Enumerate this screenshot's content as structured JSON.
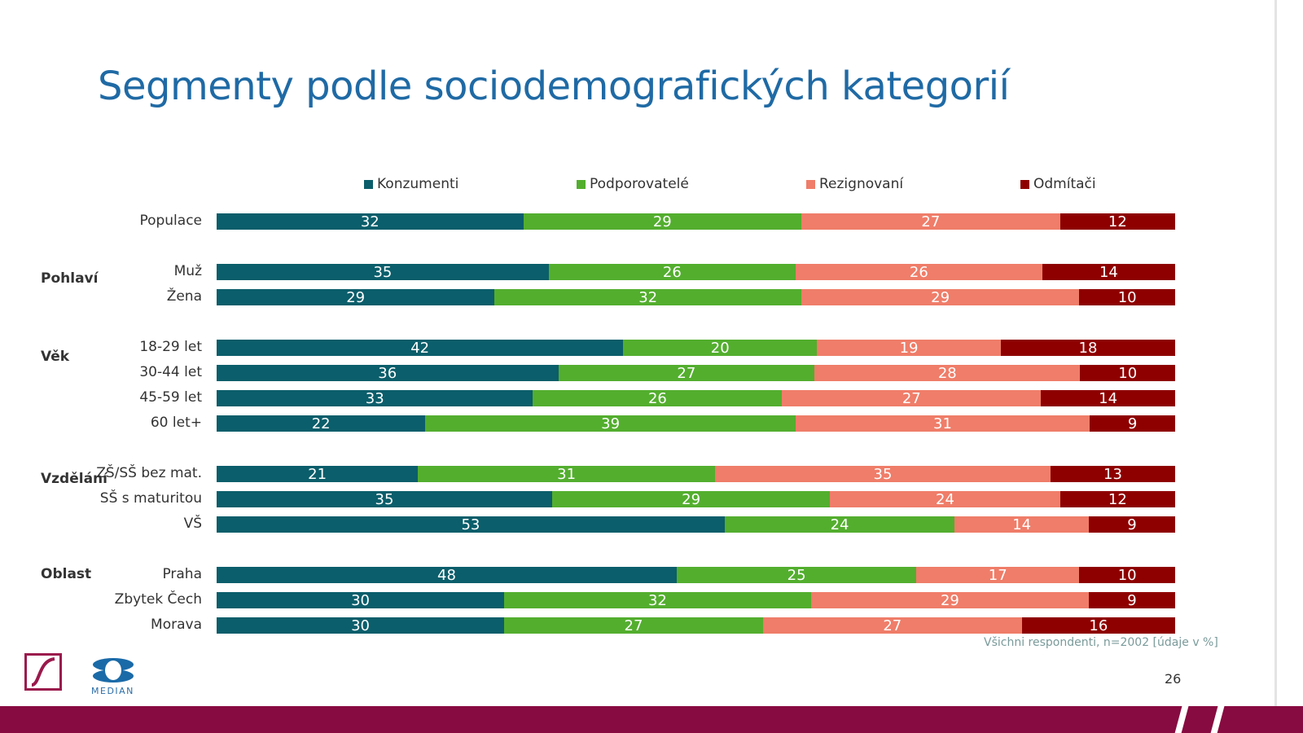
{
  "title": "Segmenty podle sociodemografických kategorií",
  "chart_data": {
    "type": "bar",
    "orientation": "horizontal",
    "stacked": "100%",
    "legend_position": "top",
    "series": [
      {
        "name": "Konzumenti",
        "color": "#0b5e6b"
      },
      {
        "name": "Podporovatelé",
        "color": "#53ae2e"
      },
      {
        "name": "Rezignovaní",
        "color": "#ef7d69"
      },
      {
        "name": "Odmítači",
        "color": "#8e0000"
      }
    ],
    "rows": [
      {
        "group": "",
        "label": "Populace",
        "values": [
          32,
          29,
          27,
          12
        ]
      },
      {
        "group": "Pohlaví",
        "label": "Muž",
        "values": [
          35,
          26,
          26,
          14
        ]
      },
      {
        "group": "",
        "label": "Žena",
        "values": [
          29,
          32,
          29,
          10
        ]
      },
      {
        "group": "Věk",
        "label": "18-29 let",
        "values": [
          42,
          20,
          19,
          18
        ]
      },
      {
        "group": "",
        "label": "30-44 let",
        "values": [
          36,
          27,
          28,
          10
        ]
      },
      {
        "group": "",
        "label": "45-59 let",
        "values": [
          33,
          26,
          27,
          14
        ]
      },
      {
        "group": "",
        "label": "60 let+",
        "values": [
          22,
          39,
          31,
          9
        ]
      },
      {
        "group": "Vzdělání",
        "label": "ZŠ/SŠ bez mat.",
        "values": [
          21,
          31,
          35,
          13
        ]
      },
      {
        "group": "",
        "label": "SŠ s maturitou",
        "values": [
          35,
          29,
          24,
          12
        ]
      },
      {
        "group": "",
        "label": "VŠ",
        "values": [
          53,
          24,
          14,
          9
        ]
      },
      {
        "group": "Oblast",
        "label": "Praha",
        "values": [
          48,
          25,
          17,
          10
        ]
      },
      {
        "group": "",
        "label": "Zbytek Čech",
        "values": [
          30,
          32,
          29,
          9
        ]
      },
      {
        "group": "",
        "label": "Morava",
        "values": [
          30,
          27,
          27,
          16
        ]
      }
    ]
  },
  "note": "Všichni respondenti, n=2002  [údaje v %]",
  "page_number": "26",
  "logo_text": "MEDIAN"
}
